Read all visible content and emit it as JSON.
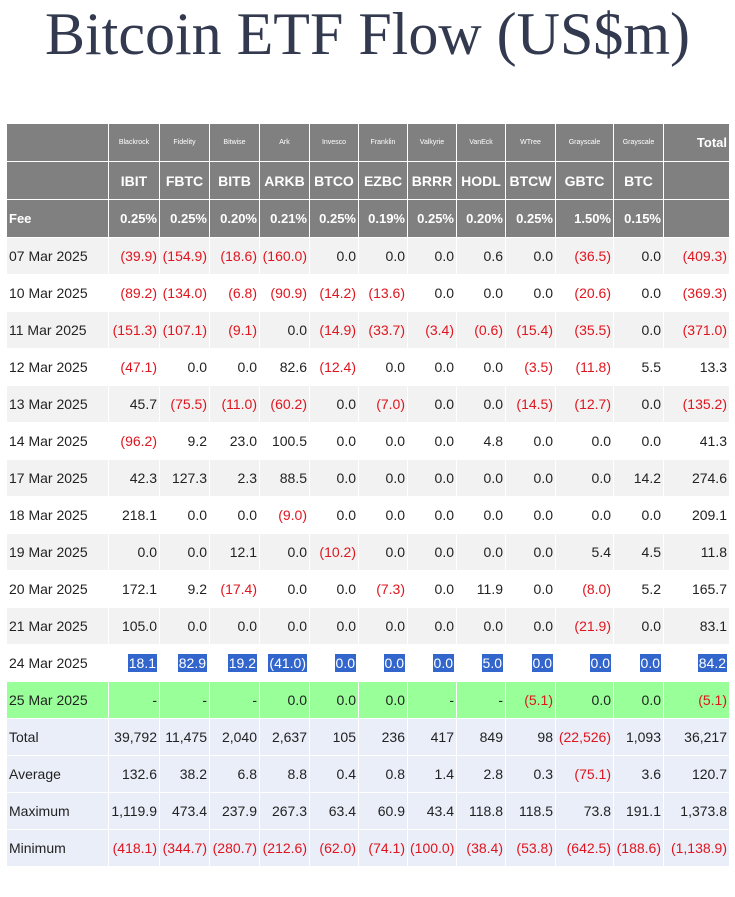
{
  "title": "Bitcoin ETF Flow (US$m)",
  "header": {
    "issuers": [
      "Blackrock",
      "Fidelity",
      "Bitwise",
      "Ark",
      "Invesco",
      "Franklin",
      "Valkyrie",
      "VanEck",
      "WTree",
      "Grayscale",
      "Grayscale"
    ],
    "total_label": "Total",
    "tickers": [
      "IBIT",
      "FBTC",
      "BITB",
      "ARKB",
      "BTCO",
      "EZBC",
      "BRRR",
      "HODL",
      "BTCW",
      "GBTC",
      "BTC"
    ],
    "fee_label": "Fee",
    "fees": [
      "0.25%",
      "0.25%",
      "0.20%",
      "0.21%",
      "0.25%",
      "0.19%",
      "0.25%",
      "0.20%",
      "0.25%",
      "1.50%",
      "0.15%"
    ]
  },
  "rows": [
    {
      "date": "07 Mar 2025",
      "values": [
        "(39.9)",
        "(154.9)",
        "(18.6)",
        "(160.0)",
        "0.0",
        "0.0",
        "0.0",
        "0.6",
        "0.0",
        "(36.5)",
        "0.0",
        "(409.3)"
      ]
    },
    {
      "date": "10 Mar 2025",
      "values": [
        "(89.2)",
        "(134.0)",
        "(6.8)",
        "(90.9)",
        "(14.2)",
        "(13.6)",
        "0.0",
        "0.0",
        "0.0",
        "(20.6)",
        "0.0",
        "(369.3)"
      ]
    },
    {
      "date": "11 Mar 2025",
      "values": [
        "(151.3)",
        "(107.1)",
        "(9.1)",
        "0.0",
        "(14.9)",
        "(33.7)",
        "(3.4)",
        "(0.6)",
        "(15.4)",
        "(35.5)",
        "0.0",
        "(371.0)"
      ]
    },
    {
      "date": "12 Mar 2025",
      "values": [
        "(47.1)",
        "0.0",
        "0.0",
        "82.6",
        "(12.4)",
        "0.0",
        "0.0",
        "0.0",
        "(3.5)",
        "(11.8)",
        "5.5",
        "13.3"
      ]
    },
    {
      "date": "13 Mar 2025",
      "values": [
        "45.7",
        "(75.5)",
        "(11.0)",
        "(60.2)",
        "0.0",
        "(7.0)",
        "0.0",
        "0.0",
        "(14.5)",
        "(12.7)",
        "0.0",
        "(135.2)"
      ]
    },
    {
      "date": "14 Mar 2025",
      "values": [
        "(96.2)",
        "9.2",
        "23.0",
        "100.5",
        "0.0",
        "0.0",
        "0.0",
        "4.8",
        "0.0",
        "0.0",
        "0.0",
        "41.3"
      ]
    },
    {
      "date": "17 Mar 2025",
      "values": [
        "42.3",
        "127.3",
        "2.3",
        "88.5",
        "0.0",
        "0.0",
        "0.0",
        "0.0",
        "0.0",
        "0.0",
        "14.2",
        "274.6"
      ]
    },
    {
      "date": "18 Mar 2025",
      "values": [
        "218.1",
        "0.0",
        "0.0",
        "(9.0)",
        "0.0",
        "0.0",
        "0.0",
        "0.0",
        "0.0",
        "0.0",
        "0.0",
        "209.1"
      ]
    },
    {
      "date": "19 Mar 2025",
      "values": [
        "0.0",
        "0.0",
        "12.1",
        "0.0",
        "(10.2)",
        "0.0",
        "0.0",
        "0.0",
        "0.0",
        "5.4",
        "4.5",
        "11.8"
      ]
    },
    {
      "date": "20 Mar 2025",
      "values": [
        "172.1",
        "9.2",
        "(17.4)",
        "0.0",
        "0.0",
        "(7.3)",
        "0.0",
        "11.9",
        "0.0",
        "(8.0)",
        "5.2",
        "165.7"
      ]
    },
    {
      "date": "21 Mar 2025",
      "values": [
        "105.0",
        "0.0",
        "0.0",
        "0.0",
        "0.0",
        "0.0",
        "0.0",
        "0.0",
        "0.0",
        "(21.9)",
        "0.0",
        "83.1"
      ]
    },
    {
      "date": "24 Mar 2025",
      "values": [
        "18.1",
        "82.9",
        "19.2",
        "(41.0)",
        "0.0",
        "0.0",
        "0.0",
        "5.0",
        "0.0",
        "0.0",
        "0.0",
        "84.2"
      ]
    },
    {
      "date": "25 Mar 2025",
      "values": [
        "-",
        "-",
        "-",
        "0.0",
        "0.0",
        "0.0",
        "-",
        "-",
        "(5.1)",
        "0.0",
        "0.0",
        "(5.1)"
      ]
    }
  ],
  "summary": [
    {
      "label": "Total",
      "values": [
        "39,792",
        "11,475",
        "2,040",
        "2,637",
        "105",
        "236",
        "417",
        "849",
        "98",
        "(22,526)",
        "1,093",
        "36,217"
      ]
    },
    {
      "label": "Average",
      "values": [
        "132.6",
        "38.2",
        "6.8",
        "8.8",
        "0.4",
        "0.8",
        "1.4",
        "2.8",
        "0.3",
        "(75.1)",
        "3.6",
        "120.7"
      ]
    },
    {
      "label": "Maximum",
      "values": [
        "1,119.9",
        "473.4",
        "237.9",
        "267.3",
        "63.4",
        "60.9",
        "43.4",
        "118.8",
        "118.5",
        "73.8",
        "191.1",
        "1,373.8"
      ]
    },
    {
      "label": "Minimum",
      "values": [
        "(418.1)",
        "(344.7)",
        "(280.7)",
        "(212.6)",
        "(62.0)",
        "(74.1)",
        "(100.0)",
        "(38.4)",
        "(53.8)",
        "(642.5)",
        "(188.6)",
        "(1,138.9)"
      ]
    }
  ]
}
